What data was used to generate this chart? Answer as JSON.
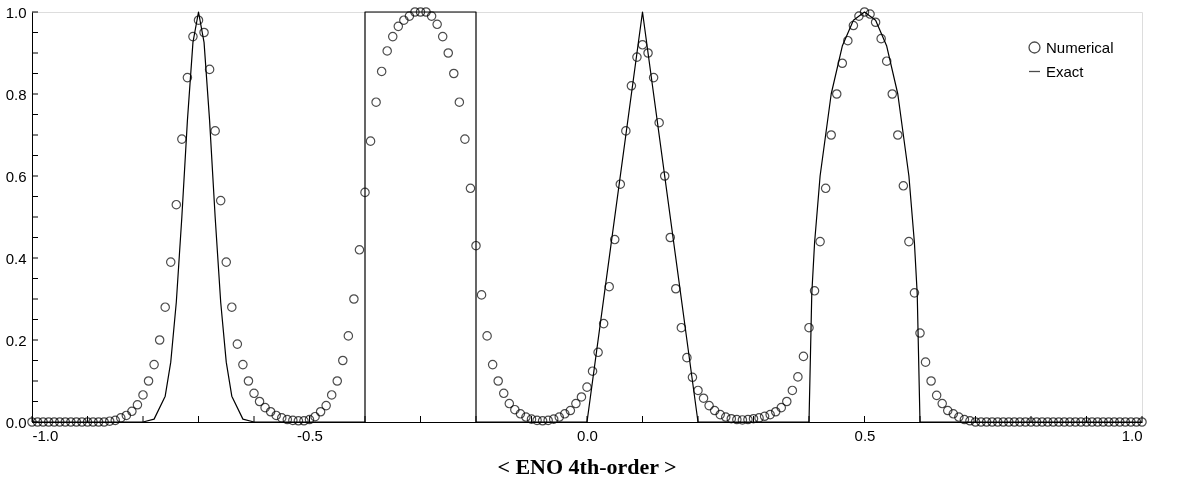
{
  "chart_data": {
    "type": "scatter",
    "title": "< ENO 4th-order >",
    "xlim": [
      -1,
      1
    ],
    "ylim": [
      0,
      1
    ],
    "xticks": [
      {
        "value": -1,
        "label": "-1.0"
      },
      {
        "value": -0.9,
        "label": null
      },
      {
        "value": -0.8,
        "label": null
      },
      {
        "value": -0.7,
        "label": null
      },
      {
        "value": -0.6,
        "label": null
      },
      {
        "value": -0.5,
        "label": "-0.5"
      },
      {
        "value": -0.4,
        "label": null
      },
      {
        "value": -0.3,
        "label": null
      },
      {
        "value": -0.2,
        "label": null
      },
      {
        "value": -0.1,
        "label": null
      },
      {
        "value": 0,
        "label": "0.0"
      },
      {
        "value": 0.1,
        "label": null
      },
      {
        "value": 0.2,
        "label": null
      },
      {
        "value": 0.3,
        "label": null
      },
      {
        "value": 0.4,
        "label": null
      },
      {
        "value": 0.5,
        "label": "0.5"
      },
      {
        "value": 0.6,
        "label": null
      },
      {
        "value": 0.7,
        "label": null
      },
      {
        "value": 0.8,
        "label": null
      },
      {
        "value": 0.9,
        "label": null
      },
      {
        "value": 1,
        "label": "1.0"
      }
    ],
    "yticks": [
      {
        "value": 0,
        "label": "0.0"
      },
      {
        "value": 0.05,
        "label": null
      },
      {
        "value": 0.1,
        "label": null
      },
      {
        "value": 0.15,
        "label": null
      },
      {
        "value": 0.2,
        "label": "0.2"
      },
      {
        "value": 0.25,
        "label": null
      },
      {
        "value": 0.3,
        "label": null
      },
      {
        "value": 0.35,
        "label": null
      },
      {
        "value": 0.4,
        "label": "0.4"
      },
      {
        "value": 0.45,
        "label": null
      },
      {
        "value": 0.5,
        "label": null
      },
      {
        "value": 0.55,
        "label": null
      },
      {
        "value": 0.6,
        "label": "0.6"
      },
      {
        "value": 0.65,
        "label": null
      },
      {
        "value": 0.7,
        "label": null
      },
      {
        "value": 0.75,
        "label": null
      },
      {
        "value": 0.8,
        "label": "0.8"
      },
      {
        "value": 0.85,
        "label": null
      },
      {
        "value": 0.9,
        "label": null
      },
      {
        "value": 0.95,
        "label": null
      },
      {
        "value": 1,
        "label": "1.0"
      }
    ],
    "grid": false,
    "legend": "top right",
    "series": [
      {
        "name": "Numerical",
        "marker": "circle",
        "color": "#000000",
        "x": [
          -1.0,
          -0.99,
          -0.98,
          -0.97,
          -0.96,
          -0.95,
          -0.94,
          -0.93,
          -0.92,
          -0.91,
          -0.9,
          -0.89,
          -0.88,
          -0.87,
          -0.86,
          -0.85,
          -0.84,
          -0.83,
          -0.82,
          -0.81,
          -0.8,
          -0.79,
          -0.78,
          -0.77,
          -0.76,
          -0.75,
          -0.74,
          -0.73,
          -0.72,
          -0.71,
          -0.7,
          -0.69,
          -0.68,
          -0.67,
          -0.66,
          -0.65,
          -0.64,
          -0.63,
          -0.62,
          -0.61,
          -0.6,
          -0.59,
          -0.58,
          -0.57,
          -0.56,
          -0.55,
          -0.54,
          -0.53,
          -0.52,
          -0.51,
          -0.5,
          -0.49,
          -0.48,
          -0.47,
          -0.46,
          -0.45,
          -0.44,
          -0.43,
          -0.42,
          -0.41,
          -0.4,
          -0.39,
          -0.38,
          -0.37,
          -0.36,
          -0.35,
          -0.34,
          -0.33,
          -0.32,
          -0.31,
          -0.3,
          -0.29,
          -0.28,
          -0.27,
          -0.26,
          -0.25,
          -0.24,
          -0.23,
          -0.22,
          -0.21,
          -0.2,
          -0.19,
          -0.18,
          -0.17,
          -0.16,
          -0.15,
          -0.14,
          -0.13,
          -0.12,
          -0.11,
          -0.1,
          -0.09,
          -0.08,
          -0.07,
          -0.06,
          -0.05,
          -0.04,
          -0.03,
          -0.02,
          -0.01,
          0.0,
          0.01,
          0.02,
          0.03,
          0.04,
          0.05,
          0.06,
          0.07,
          0.08,
          0.09,
          0.1,
          0.11,
          0.12,
          0.13,
          0.14,
          0.15,
          0.16,
          0.17,
          0.18,
          0.19,
          0.2,
          0.21,
          0.22,
          0.23,
          0.24,
          0.25,
          0.26,
          0.27,
          0.28,
          0.29,
          0.3,
          0.31,
          0.32,
          0.33,
          0.34,
          0.35,
          0.36,
          0.37,
          0.38,
          0.39,
          0.4,
          0.41,
          0.42,
          0.43,
          0.44,
          0.45,
          0.46,
          0.47,
          0.48,
          0.49,
          0.5,
          0.51,
          0.52,
          0.53,
          0.54,
          0.55,
          0.56,
          0.57,
          0.58,
          0.59,
          0.6,
          0.61,
          0.62,
          0.63,
          0.64,
          0.65,
          0.66,
          0.67,
          0.68,
          0.69,
          0.7,
          0.71,
          0.72,
          0.73,
          0.74,
          0.75,
          0.76,
          0.77,
          0.78,
          0.79,
          0.8,
          0.81,
          0.82,
          0.83,
          0.84,
          0.85,
          0.86,
          0.87,
          0.88,
          0.89,
          0.9,
          0.91,
          0.92,
          0.93,
          0.94,
          0.95,
          0.96,
          0.97,
          0.98,
          0.99,
          1.0
        ],
        "values": [
          0,
          0,
          0,
          0,
          0,
          0,
          0,
          0,
          0,
          0,
          0,
          0,
          0,
          0,
          0.002,
          0.004,
          0.01,
          0.016,
          0.026,
          0.042,
          0.066,
          0.1,
          0.14,
          0.2,
          0.28,
          0.39,
          0.53,
          0.69,
          0.84,
          0.94,
          0.98,
          0.95,
          0.86,
          0.71,
          0.54,
          0.39,
          0.28,
          0.19,
          0.14,
          0.1,
          0.07,
          0.05,
          0.035,
          0.025,
          0.016,
          0.01,
          0.006,
          0.004,
          0.003,
          0.003,
          0.006,
          0.013,
          0.025,
          0.04,
          0.066,
          0.1,
          0.15,
          0.21,
          0.3,
          0.42,
          0.56,
          0.685,
          0.78,
          0.855,
          0.905,
          0.94,
          0.965,
          0.98,
          0.99,
          1.0,
          1.0,
          1.0,
          0.99,
          0.97,
          0.94,
          0.9,
          0.85,
          0.78,
          0.69,
          0.57,
          0.43,
          0.31,
          0.21,
          0.14,
          0.1,
          0.07,
          0.045,
          0.03,
          0.02,
          0.012,
          0.007,
          0.004,
          0.003,
          0.004,
          0.007,
          0.012,
          0.02,
          0.028,
          0.045,
          0.061,
          0.085,
          0.124,
          0.17,
          0.24,
          0.33,
          0.445,
          0.58,
          0.71,
          0.82,
          0.89,
          0.92,
          0.9,
          0.84,
          0.73,
          0.6,
          0.45,
          0.325,
          0.23,
          0.157,
          0.109,
          0.077,
          0.058,
          0.04,
          0.028,
          0.018,
          0.012,
          0.008,
          0.006,
          0.005,
          0.006,
          0.008,
          0.01,
          0.014,
          0.018,
          0.025,
          0.035,
          0.05,
          0.077,
          0.11,
          0.16,
          0.23,
          0.32,
          0.44,
          0.57,
          0.7,
          0.8,
          0.875,
          0.93,
          0.967,
          0.99,
          1.0,
          0.995,
          0.975,
          0.935,
          0.88,
          0.8,
          0.7,
          0.576,
          0.44,
          0.315,
          0.217,
          0.146,
          0.1,
          0.065,
          0.045,
          0.028,
          0.02,
          0.012,
          0.006,
          0.003,
          0,
          0,
          0,
          0,
          0,
          0,
          0,
          0,
          0,
          0,
          0,
          0,
          0,
          0,
          0,
          0,
          0,
          0,
          0,
          0,
          0,
          0,
          0,
          0,
          0,
          0,
          0,
          0,
          0,
          0,
          0
        ]
      },
      {
        "name": "Exact",
        "type": "line",
        "line_style": "solid",
        "color": "#000000",
        "x": [
          -1,
          -0.8,
          -0.78,
          -0.76,
          -0.75,
          -0.74,
          -0.73,
          -0.72,
          -0.71,
          -0.7,
          -0.69,
          -0.68,
          -0.67,
          -0.66,
          -0.65,
          -0.64,
          -0.62,
          -0.6,
          -0.4,
          -0.4,
          -0.2,
          -0.2,
          0,
          0.1,
          0.2,
          0.4,
          0.405,
          0.41,
          0.42,
          0.44,
          0.46,
          0.48,
          0.5,
          0.52,
          0.54,
          0.56,
          0.58,
          0.59,
          0.595,
          0.6,
          1
        ],
        "values": [
          0,
          0,
          0.007,
          0.063,
          0.146,
          0.292,
          0.5,
          0.735,
          0.926,
          1,
          0.926,
          0.735,
          0.5,
          0.292,
          0.146,
          0.063,
          0.007,
          0,
          0,
          1,
          1,
          0,
          0,
          1,
          0,
          0,
          0.312,
          0.436,
          0.6,
          0.8,
          0.917,
          0.98,
          1,
          0.98,
          0.917,
          0.8,
          0.6,
          0.436,
          0.312,
          0,
          0
        ]
      }
    ]
  }
}
